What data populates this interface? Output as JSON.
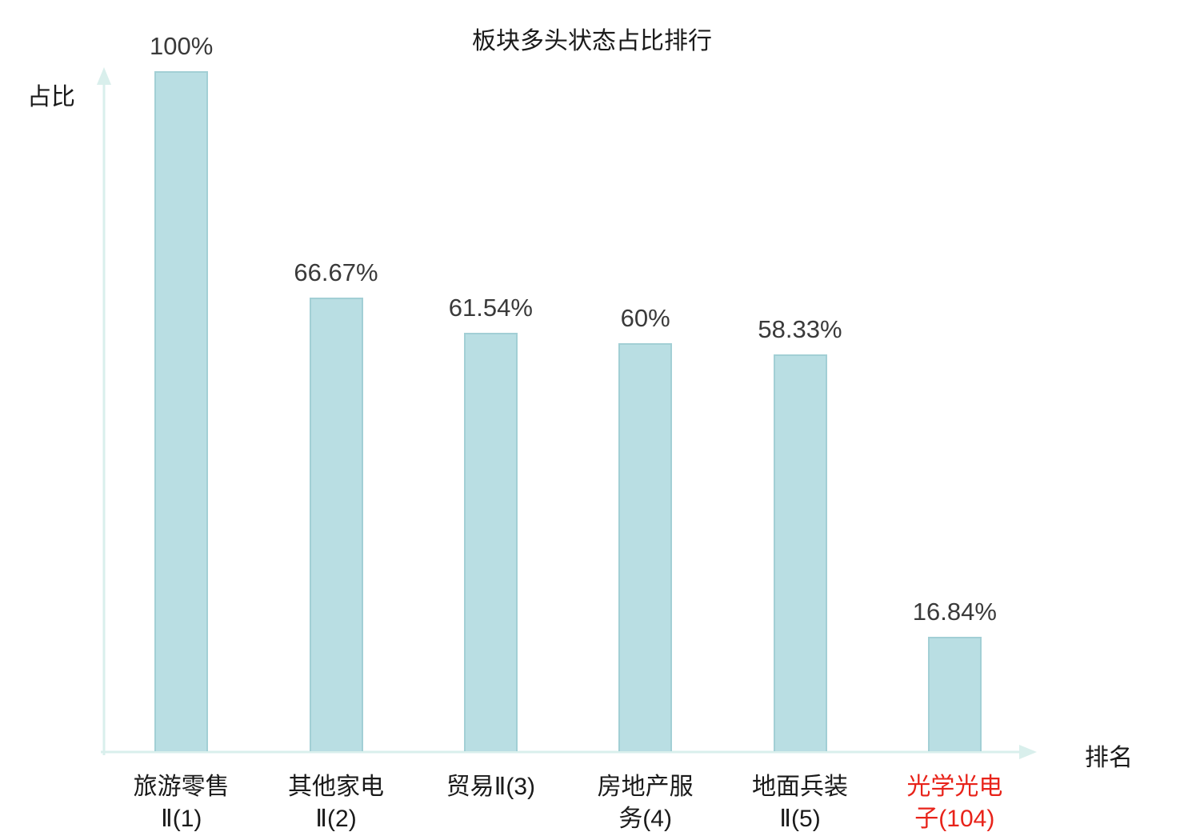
{
  "chart_data": {
    "type": "bar",
    "title": "板块多头状态占比排行",
    "ylabel": "占比",
    "xlabel": "排名",
    "categories": [
      "旅游零售\nⅡ(1)",
      "其他家电\nⅡ(2)",
      "贸易Ⅱ(3)",
      "房地产服\n务(4)",
      "地面兵装\nⅡ(5)",
      "光学光电\n子(104)"
    ],
    "values": [
      100,
      66.67,
      61.54,
      60,
      58.33,
      16.84
    ],
    "value_labels": [
      "100%",
      "66.67%",
      "61.54%",
      "60%",
      "58.33%",
      "16.84%"
    ],
    "highlight_index": 5,
    "ylim": [
      0,
      100
    ],
    "grid": false,
    "legend": "none",
    "colors": {
      "bar_fill": "#b9dee3",
      "bar_border": "#a2cfd5",
      "axis": "#d9efec",
      "value_text": "#3a3a3a",
      "category_text": "#1a1a1a",
      "highlight": "#e8231a"
    }
  }
}
